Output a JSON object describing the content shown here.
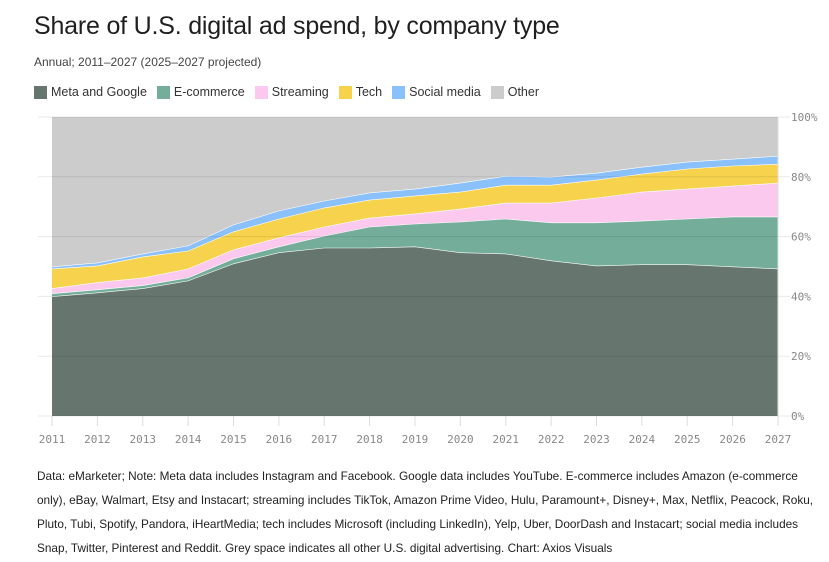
{
  "title": "Share of U.S. digital ad spend, by company type",
  "subtitle": "Annual; 2011–2027 (2025–2027 projected)",
  "legend": [
    {
      "label": "Meta and Google",
      "color": "#66766f"
    },
    {
      "label": "E-commerce",
      "color": "#74ae9b"
    },
    {
      "label": "Streaming",
      "color": "#fcc9ee"
    },
    {
      "label": "Tech",
      "color": "#f6d24d"
    },
    {
      "label": "Social media",
      "color": "#8ac0fb"
    },
    {
      "label": "Other",
      "color": "#cccccc"
    }
  ],
  "footnote": "Data: eMarketer; Note: Meta data includes Instagram and Facebook. Google data includes YouTube. E-commerce includes Amazon (e-commerce only), eBay, Walmart, Etsy and Instacart; streaming includes TikTok, Amazon Prime Video, Hulu, Paramount+, Disney+, Max, Netflix, Peacock, Roku, Pluto, Tubi, Spotify, Pandora, iHeartMedia; tech includes Microsoft (including LinkedIn), Yelp, Uber, DoorDash and Instacart; social media includes Snap, Twitter, Pinterest and Reddit. Grey space indicates all other U.S. digital advertising. Chart: Axios Visuals",
  "chart_data": {
    "type": "area",
    "stacked": true,
    "title": "Share of U.S. digital ad spend, by company type",
    "subtitle": "Annual; 2011–2027 (2025–2027 projected)",
    "xlabel": "",
    "ylabel": "",
    "x": [
      2011,
      2012,
      2013,
      2014,
      2015,
      2016,
      2017,
      2018,
      2019,
      2020,
      2021,
      2022,
      2023,
      2024,
      2025,
      2026,
      2027
    ],
    "x_tick_labels": [
      "2011",
      "2012",
      "2013",
      "2014",
      "2015",
      "2016",
      "2017",
      "2018",
      "2019",
      "2020",
      "2021",
      "2022",
      "2023",
      "2024",
      "2025",
      "2026",
      "2027"
    ],
    "y_tick_labels": [
      "0%",
      "20%",
      "40%",
      "60%",
      "80%",
      "100%"
    ],
    "y_ticks": [
      0,
      20,
      40,
      60,
      80,
      100
    ],
    "ylim": [
      0,
      100
    ],
    "y_axis_side": "right",
    "grid": true,
    "legend_position": "top-left",
    "series": [
      {
        "name": "Meta and Google",
        "color": "#66766f",
        "values": [
          40.0,
          41.3,
          42.7,
          45.3,
          51.0,
          54.7,
          56.3,
          56.3,
          56.7,
          54.7,
          54.3,
          52.0,
          50.3,
          50.7,
          50.7,
          50.0,
          49.3
        ]
      },
      {
        "name": "E-commerce",
        "color": "#74ae9b",
        "values": [
          1.0,
          1.0,
          1.0,
          1.0,
          1.7,
          2.0,
          4.0,
          7.0,
          7.6,
          10.3,
          11.7,
          12.7,
          14.4,
          14.6,
          15.3,
          16.7,
          17.4
        ]
      },
      {
        "name": "Streaming",
        "color": "#fcc9ee",
        "values": [
          1.7,
          2.4,
          2.6,
          3.0,
          3.0,
          3.0,
          3.0,
          3.0,
          3.4,
          4.3,
          5.3,
          6.6,
          8.3,
          9.7,
          10.0,
          10.3,
          11.3
        ]
      },
      {
        "name": "Tech",
        "color": "#f6d24d",
        "values": [
          6.6,
          5.6,
          7.0,
          6.0,
          6.0,
          6.3,
          6.4,
          6.0,
          6.0,
          5.7,
          6.0,
          6.0,
          6.0,
          6.0,
          6.7,
          6.7,
          6.3
        ]
      },
      {
        "name": "Social media",
        "color": "#8ac0fb",
        "values": [
          0.7,
          1.0,
          1.0,
          1.7,
          2.3,
          2.7,
          2.3,
          2.4,
          2.3,
          3.0,
          3.0,
          2.7,
          2.3,
          2.3,
          2.3,
          2.3,
          2.7
        ]
      },
      {
        "name": "Other",
        "color": "#cccccc",
        "values": [
          50.0,
          48.7,
          45.7,
          43.0,
          36.0,
          31.3,
          28.0,
          25.3,
          24.0,
          22.0,
          19.7,
          20.0,
          18.7,
          16.7,
          15.0,
          14.0,
          13.0
        ]
      }
    ]
  }
}
